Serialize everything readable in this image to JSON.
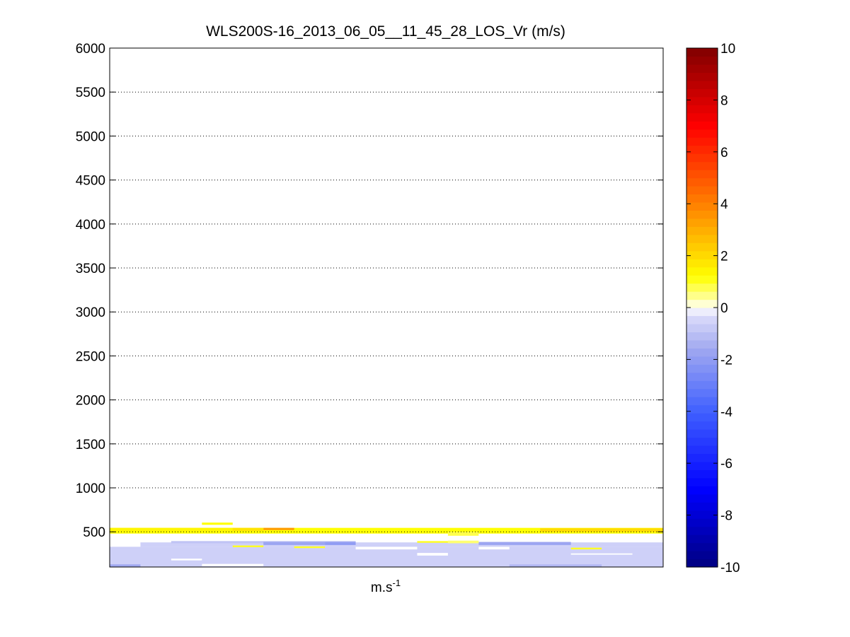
{
  "chart_data": {
    "type": "heatmap",
    "title": "WLS200S-16_2013_06_05__11_45_28_LOS_Vr (m/s)",
    "xlabel": "m.s",
    "xlabel_superscript": "-1",
    "ylabel": "",
    "ylim": [
      100,
      6000
    ],
    "yticks": [
      500,
      1000,
      1500,
      2000,
      2500,
      3000,
      3500,
      4000,
      4500,
      5000,
      5500,
      6000
    ],
    "grid": "horizontal dotted",
    "x_columns": 18,
    "colorbar": {
      "range": [
        -10,
        10
      ],
      "ticks": [
        -10,
        -8,
        -6,
        -4,
        -2,
        0,
        2,
        4,
        6,
        8,
        10
      ],
      "levels": 64,
      "colormap": "jet-like diverging (dark blue - blue - pale lavender - white - yellow - orange - red - dark red)"
    },
    "cells": [
      {
        "x0": 0,
        "x1": 18,
        "y0": 100,
        "y1": 330,
        "v": -0.6
      },
      {
        "x0": 0,
        "x1": 1,
        "y0": 100,
        "y1": 130,
        "v": -1.6
      },
      {
        "x0": 2,
        "x1": 3,
        "y0": 175,
        "y1": 195,
        "v": 0
      },
      {
        "x0": 3,
        "x1": 5,
        "y0": 110,
        "y1": 135,
        "v": 0
      },
      {
        "x0": 8,
        "x1": 10,
        "y0": 300,
        "y1": 345,
        "v": 0
      },
      {
        "x0": 10,
        "x1": 11,
        "y0": 230,
        "y1": 260,
        "v": 0
      },
      {
        "x0": 12,
        "x1": 13,
        "y0": 300,
        "y1": 330,
        "v": 0
      },
      {
        "x0": 15,
        "x1": 17,
        "y0": 240,
        "y1": 255,
        "v": 0
      },
      {
        "x0": 13,
        "x1": 16,
        "y0": 100,
        "y1": 130,
        "v": -1.2
      },
      {
        "x0": 1,
        "x1": 18,
        "y0": 330,
        "y1": 380,
        "v": -0.6
      },
      {
        "x0": 2,
        "x1": 8,
        "y0": 370,
        "y1": 395,
        "v": -0.9
      },
      {
        "x0": 5,
        "x1": 7,
        "y0": 350,
        "y1": 385,
        "v": -1.7
      },
      {
        "x0": 7,
        "x1": 8,
        "y0": 350,
        "y1": 385,
        "v": -2.0
      },
      {
        "x0": 12,
        "x1": 15,
        "y0": 350,
        "y1": 385,
        "v": -1.7
      },
      {
        "x0": 11,
        "x1": 12,
        "y0": 370,
        "y1": 400,
        "v": 0.6
      },
      {
        "x0": 10,
        "x1": 11,
        "y0": 375,
        "y1": 395,
        "v": 1.0
      },
      {
        "x0": 4,
        "x1": 5,
        "y0": 325,
        "y1": 345,
        "v": 1.0
      },
      {
        "x0": 6,
        "x1": 7,
        "y0": 315,
        "y1": 335,
        "v": 1.0
      },
      {
        "x0": 15,
        "x1": 16,
        "y0": 300,
        "y1": 320,
        "v": 1.0
      },
      {
        "x0": 0,
        "x1": 18,
        "y0": 480,
        "y1": 545,
        "v": 1.2
      },
      {
        "x0": 0,
        "x1": 4,
        "y0": 505,
        "y1": 545,
        "v": 1.4
      },
      {
        "x0": 5,
        "x1": 6,
        "y0": 520,
        "y1": 545,
        "v": 3.4
      },
      {
        "x0": 4,
        "x1": 5,
        "y0": 510,
        "y1": 545,
        "v": 1.8
      },
      {
        "x0": 11,
        "x1": 12,
        "y0": 455,
        "y1": 500,
        "v": 0.8
      },
      {
        "x0": 14,
        "x1": 18,
        "y0": 500,
        "y1": 540,
        "v": 2.0
      },
      {
        "x0": 3,
        "x1": 4,
        "y0": 580,
        "y1": 605,
        "v": 1.2
      }
    ]
  }
}
